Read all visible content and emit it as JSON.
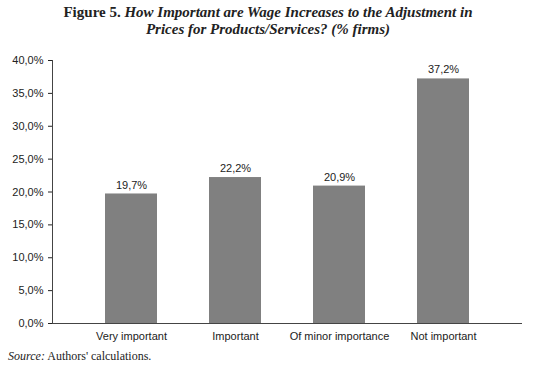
{
  "chart_data": {
    "type": "bar",
    "title": "Figure 5. How Important are Wage Increases to the Adjustment in Prices for Products/Services? (% firms)",
    "caption": "Source: Authors' calculations.",
    "categories": [
      "Very important",
      "Important",
      "Of minor importance",
      "Not important"
    ],
    "values": [
      19.7,
      22.2,
      20.9,
      37.2
    ],
    "value_labels": [
      "19,7%",
      "22,2%",
      "20,9%",
      "37,2%"
    ],
    "data_labels": true,
    "color": "#808080",
    "ylim": [
      0,
      40
    ],
    "yticks": [
      {
        "value": 0,
        "label": "0,0%"
      },
      {
        "value": 5,
        "label": "5,0%"
      },
      {
        "value": 10,
        "label": "10,0%"
      },
      {
        "value": 15,
        "label": "15,0%"
      },
      {
        "value": 20,
        "label": "20,0%"
      },
      {
        "value": 25,
        "label": "25,0%"
      },
      {
        "value": 30,
        "label": "30,0%"
      },
      {
        "value": 35,
        "label": "35,0%"
      },
      {
        "value": 40,
        "label": "40,0%"
      }
    ],
    "grid": false
  }
}
